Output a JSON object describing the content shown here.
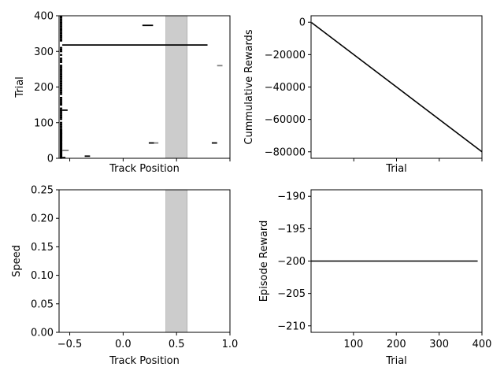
{
  "figure": {
    "colors": {
      "line": "#000000",
      "band_fill": "#cccccc",
      "band_stroke": "#a0a0a0",
      "gray_segment": "#808080",
      "background": "#ffffff"
    }
  },
  "chart_data": [
    {
      "id": "trial-vs-position",
      "type": "scatter",
      "title": "",
      "xlabel": "Track Position",
      "ylabel": "Trial",
      "xlim": [
        -0.6,
        1.0
      ],
      "ylim": [
        0,
        400
      ],
      "xticks": [
        -0.5,
        0.0,
        0.5,
        1.0
      ],
      "show_xtick_labels": false,
      "yticks": [
        0,
        100,
        200,
        300,
        400
      ],
      "ytick_labels": [
        "0",
        "100",
        "200",
        "300",
        "400"
      ],
      "shaded_band": {
        "x": [
          0.4,
          0.6
        ]
      },
      "events": {
        "left_edge_trials": [
          1,
          3,
          5,
          8,
          10,
          13,
          15,
          18,
          20,
          22,
          25,
          28,
          30,
          33,
          35,
          38,
          40,
          42,
          45,
          48,
          50,
          52,
          55,
          58,
          60,
          63,
          65,
          68,
          70,
          72,
          75,
          78,
          80,
          85,
          90,
          95,
          100,
          110,
          115,
          120,
          125,
          130,
          135,
          140,
          150,
          155,
          160,
          165,
          170,
          180,
          185,
          190,
          195,
          200,
          205,
          210,
          215,
          220,
          225,
          230,
          235,
          240,
          245,
          250,
          255,
          260,
          270,
          275,
          280,
          290,
          300,
          305,
          310,
          330,
          335,
          340,
          345,
          350,
          355,
          360,
          365,
          370,
          375,
          380,
          385,
          390,
          395,
          398
        ],
        "segments": [
          {
            "trial": 318,
            "x_start": -0.57,
            "x_end": 0.79,
            "color": "black"
          },
          {
            "trial": 373,
            "x_start": 0.18,
            "x_end": 0.28,
            "color": "black"
          },
          {
            "trial": 135,
            "x_start": -0.57,
            "x_end": -0.52,
            "color": "black"
          },
          {
            "trial": 43,
            "x_start": 0.24,
            "x_end": 0.29,
            "color": "black"
          },
          {
            "trial": 43,
            "x_start": 0.29,
            "x_end": 0.33,
            "color": "gray"
          },
          {
            "trial": 43,
            "x_start": 0.83,
            "x_end": 0.88,
            "color": "black"
          },
          {
            "trial": 260,
            "x_start": 0.88,
            "x_end": 0.93,
            "color": "gray"
          },
          {
            "trial": 6,
            "x_start": -0.36,
            "x_end": -0.31,
            "color": "black"
          },
          {
            "trial": 22,
            "x_start": -0.57,
            "x_end": -0.51,
            "color": "gray"
          },
          {
            "trial": 2,
            "x_start": -0.57,
            "x_end": -0.54,
            "color": "black"
          }
        ]
      }
    },
    {
      "id": "cumulative-rewards",
      "type": "line",
      "title": "",
      "xlabel": "Trial",
      "ylabel": "Cummulative Rewards",
      "xlim": [
        0,
        400
      ],
      "ylim": [
        -84000,
        4000
      ],
      "xticks": [
        100,
        200,
        300,
        400
      ],
      "show_xtick_labels": false,
      "yticks": [
        0,
        -20000,
        -40000,
        -60000,
        -80000
      ],
      "ytick_labels": [
        "0",
        "−20000",
        "−40000",
        "−60000",
        "−80000"
      ],
      "series": [
        {
          "x": [
            1,
            400
          ],
          "y": [
            -200,
            -80000
          ]
        }
      ]
    },
    {
      "id": "speed-vs-position",
      "type": "line",
      "title": "",
      "xlabel": "Track Position",
      "ylabel": "Speed",
      "xlim": [
        -0.6,
        1.0
      ],
      "ylim": [
        0,
        0.25
      ],
      "xticks": [
        -0.5,
        0.0,
        0.5,
        1.0
      ],
      "xtick_labels": [
        "−0.5",
        "0.0",
        "0.5",
        "1.0"
      ],
      "yticks": [
        0.0,
        0.05,
        0.1,
        0.15,
        0.2,
        0.25
      ],
      "ytick_labels": [
        "0.00",
        "0.05",
        "0.10",
        "0.15",
        "0.20",
        "0.25"
      ],
      "shaded_band": {
        "x": [
          0.4,
          0.6
        ]
      },
      "series": []
    },
    {
      "id": "episode-reward",
      "type": "line",
      "title": "",
      "xlabel": "Trial",
      "ylabel": "Episode Reward",
      "xlim": [
        1,
        400
      ],
      "ylim": [
        -211,
        -189
      ],
      "xticks": [
        100,
        200,
        300,
        400
      ],
      "xtick_labels": [
        "100",
        "200",
        "300",
        "400"
      ],
      "yticks": [
        -190,
        -195,
        -200,
        -205,
        -210
      ],
      "ytick_labels": [
        "−190",
        "−195",
        "−200",
        "−205",
        "−210"
      ],
      "series": [
        {
          "x": [
            1,
            390
          ],
          "y": [
            -200,
            -200
          ]
        }
      ]
    }
  ]
}
